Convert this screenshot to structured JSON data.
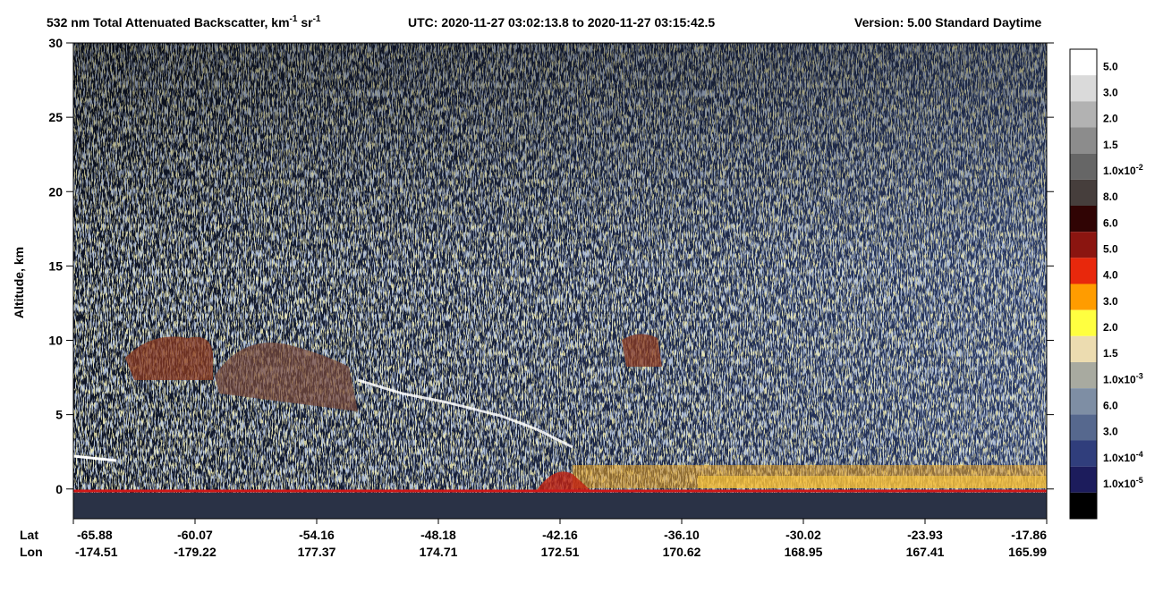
{
  "chart_data": {
    "type": "curtain",
    "title": {
      "text": "532 nm Total Attenuated Backscatter, km",
      "sup1": "-1",
      "unit2": "sr",
      "sup2": "-1"
    },
    "time_range": "UTC:  2020-11-27 03:02:13.8  to  2020-11-27 03:15:42.5",
    "version": "Version: 5.00  Standard  Daytime",
    "ylabel": "Altitude, km",
    "ylim": [
      -2,
      30
    ],
    "yticks": [
      0,
      5,
      10,
      15,
      20,
      25,
      30
    ],
    "lat_label": "Lat",
    "lon_label": "Lon",
    "categories": [
      "-65.88",
      "-60.07",
      "-54.16",
      "-48.18",
      "-42.16",
      "-36.10",
      "-30.02",
      "-23.93",
      "-17.86"
    ],
    "lon": [
      "-174.51",
      "-179.22",
      "177.37",
      "174.71",
      "172.51",
      "170.62",
      "168.95",
      "167.41",
      "165.99"
    ],
    "colorbar": {
      "colors": [
        "#ffffff",
        "#dadada",
        "#b2b2b2",
        "#8c8c8c",
        "#666666",
        "#463e3c",
        "#300404",
        "#8b1510",
        "#e8280c",
        "#ff9c00",
        "#ffff40",
        "#ecdcb0",
        "#a8aaa0",
        "#7e8ea4",
        "#56688e",
        "#303e7c",
        "#1c1c5c",
        "#000000"
      ],
      "labels": [
        "5.0",
        "3.0",
        "2.0",
        "1.5",
        {
          "base": "1.0x10",
          "exp": "-2"
        },
        "8.0",
        "6.0",
        "5.0",
        "4.0",
        "3.0",
        "2.0",
        "1.5",
        {
          "base": "1.0x10",
          "exp": "-3"
        },
        "6.0",
        "3.0",
        {
          "base": "1.0x10",
          "exp": "-4"
        },
        {
          "base": "1.0x10",
          "exp": "-5"
        }
      ]
    }
  }
}
